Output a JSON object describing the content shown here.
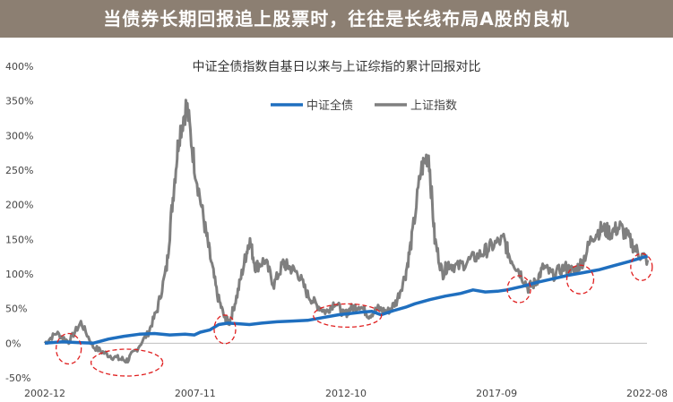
{
  "banner": {
    "text": "当债券长期回报追上股票时，往往是长线布局A股的良机"
  },
  "chart_data": {
    "type": "line",
    "title": "中证全债指数自基日以来与上证综指的累计回报对比",
    "xlabel": "",
    "ylabel": "",
    "x_tick_labels": [
      "2002-12",
      "2007-11",
      "2012-10",
      "2017-09",
      "2022-08"
    ],
    "x_tick_dates": [
      2002.92,
      2007.83,
      2012.75,
      2017.67,
      2022.58
    ],
    "xlim": [
      2002.92,
      2022.58
    ],
    "ylim": [
      -50,
      400
    ],
    "y_ticks": [
      -50,
      0,
      50,
      100,
      150,
      200,
      250,
      300,
      350,
      400
    ],
    "y_tick_labels": [
      "-50%",
      "0%",
      "50%",
      "100%",
      "150%",
      "200%",
      "250%",
      "300%",
      "350%",
      "400%"
    ],
    "legend": {
      "position": "top-center"
    },
    "colors": {
      "bond": "#1f6fbf",
      "sse": "#7f7f7f",
      "highlight": "#e02020",
      "banner": "#8c7f72"
    },
    "series": [
      {
        "name": "中证全债",
        "x": [
          2002.92,
          2003.5,
          2004.0,
          2004.5,
          2005.0,
          2005.5,
          2006.0,
          2006.5,
          2007.0,
          2007.5,
          2007.8,
          2008.0,
          2008.3,
          2008.6,
          2008.9,
          2009.3,
          2009.6,
          2010.0,
          2010.5,
          2011.0,
          2011.5,
          2012.0,
          2012.5,
          2012.9,
          2013.3,
          2013.6,
          2013.9,
          2014.3,
          2014.7,
          2015.0,
          2015.5,
          2016.0,
          2016.5,
          2016.9,
          2017.3,
          2017.7,
          2018.0,
          2018.5,
          2019.0,
          2019.5,
          2020.0,
          2020.5,
          2021.0,
          2021.5,
          2022.0,
          2022.6
        ],
        "values": [
          0,
          2,
          1,
          0,
          6,
          10,
          13,
          14,
          12,
          13,
          12,
          16,
          19,
          27,
          29,
          28,
          27,
          29,
          31,
          32,
          33,
          37,
          41,
          43,
          45,
          46,
          41,
          47,
          52,
          57,
          63,
          68,
          72,
          77,
          74,
          75,
          77,
          82,
          88,
          93,
          98,
          102,
          106,
          112,
          118,
          126
        ]
      },
      {
        "name": "上证指数",
        "x": [
          2002.92,
          2003.3,
          2003.7,
          2004.1,
          2004.5,
          2004.9,
          2005.3,
          2005.6,
          2005.9,
          2006.3,
          2006.6,
          2006.9,
          2007.1,
          2007.3,
          2007.55,
          2007.8,
          2008.1,
          2008.3,
          2008.55,
          2008.8,
          2008.95,
          2009.2,
          2009.45,
          2009.6,
          2009.8,
          2010.1,
          2010.4,
          2010.7,
          2010.9,
          2011.2,
          2011.5,
          2011.8,
          2012.1,
          2012.4,
          2012.7,
          2012.9,
          2013.2,
          2013.5,
          2013.8,
          2014.1,
          2014.4,
          2014.7,
          2014.9,
          2015.2,
          2015.45,
          2015.65,
          2015.9,
          2016.1,
          2016.4,
          2016.8,
          2017.2,
          2017.5,
          2017.9,
          2018.1,
          2018.4,
          2018.7,
          2018.95,
          2019.2,
          2019.5,
          2019.9,
          2020.2,
          2020.5,
          2020.8,
          2021.1,
          2021.4,
          2021.7,
          2022.0,
          2022.3,
          2022.6
        ],
        "values": [
          0,
          15,
          2,
          30,
          -5,
          -15,
          -22,
          -25,
          -10,
          15,
          50,
          110,
          210,
          300,
          345,
          260,
          180,
          130,
          70,
          35,
          30,
          70,
          120,
          150,
          110,
          120,
          85,
          115,
          110,
          100,
          70,
          55,
          45,
          60,
          40,
          50,
          55,
          40,
          50,
          45,
          60,
          100,
          150,
          250,
          275,
          150,
          100,
          115,
          110,
          120,
          130,
          140,
          150,
          125,
          105,
          80,
          88,
          110,
          98,
          110,
          103,
          120,
          155,
          165,
          160,
          168,
          150,
          130,
          120
        ]
      }
    ],
    "highlight_ellipses": [
      {
        "x": 2003.7,
        "y": -8
      },
      {
        "x": 2005.6,
        "y": -28
      },
      {
        "x": 2008.8,
        "y": 20
      },
      {
        "x": 2012.8,
        "y": 40
      },
      {
        "x": 2018.4,
        "y": 78
      },
      {
        "x": 2020.4,
        "y": 92
      },
      {
        "x": 2022.4,
        "y": 110
      }
    ]
  }
}
